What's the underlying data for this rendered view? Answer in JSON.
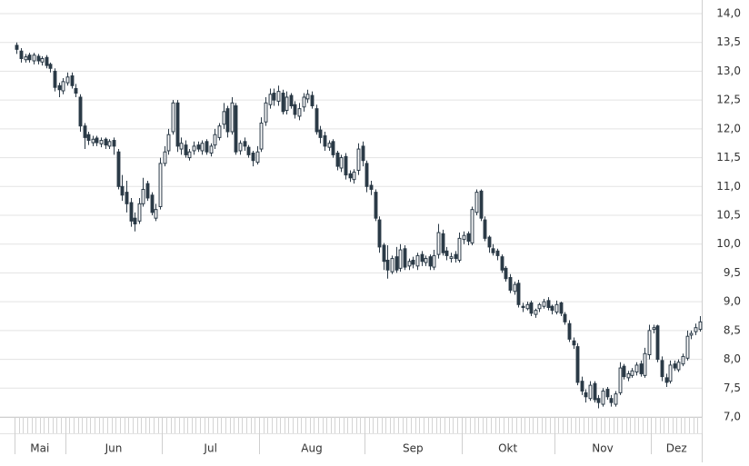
{
  "chart_data": {
    "type": "candlestick",
    "up_color": "#ffffff",
    "down_color": "#2b3a47",
    "line_color": "#2b3a47",
    "grid": true,
    "ylim": [
      7,
      14
    ],
    "yticks": [
      {
        "value": 7,
        "label": "7,0"
      },
      {
        "value": 7.5,
        "label": "7,5"
      },
      {
        "value": 8,
        "label": "8,0"
      },
      {
        "value": 8.5,
        "label": "8,5"
      },
      {
        "value": 9,
        "label": "9,0"
      },
      {
        "value": 9.5,
        "label": "9,5"
      },
      {
        "value": 10,
        "label": "10,0"
      },
      {
        "value": 10.5,
        "label": "10,5"
      },
      {
        "value": 11,
        "label": "11,0"
      },
      {
        "value": 11.5,
        "label": "11,5"
      },
      {
        "value": 12,
        "label": "12,0"
      },
      {
        "value": 12.5,
        "label": "12,5"
      },
      {
        "value": 13,
        "label": "13,0"
      },
      {
        "value": 13.5,
        "label": "13,5"
      },
      {
        "value": 14,
        "label": "14,0"
      }
    ],
    "xlim": [
      0,
      163
    ],
    "xticks": [
      {
        "value": 0,
        "label": "Mai"
      },
      {
        "value": 12,
        "label": "Jun"
      },
      {
        "value": 35,
        "label": "Jul"
      },
      {
        "value": 58,
        "label": "Aug"
      },
      {
        "value": 83,
        "label": "Sep"
      },
      {
        "value": 106,
        "label": "Okt"
      },
      {
        "value": 128,
        "label": "Nov"
      },
      {
        "value": 151,
        "label": "Dez"
      }
    ],
    "open": [
      13.45,
      13.35,
      13.2,
      13.28,
      13.18,
      13.26,
      13.16,
      13.24,
      13.12,
      13.0,
      12.75,
      12.66,
      12.8,
      12.92,
      12.7,
      12.55,
      12.05,
      11.9,
      11.76,
      11.84,
      11.74,
      11.82,
      11.7,
      11.8,
      11.6,
      11.0,
      10.9,
      10.72,
      10.45,
      10.4,
      10.7,
      11.05,
      10.85,
      10.45,
      10.65,
      11.4,
      11.62,
      11.95,
      12.45,
      11.65,
      11.72,
      11.5,
      11.62,
      11.72,
      11.62,
      11.78,
      11.58,
      11.72,
      11.85,
      12.08,
      12.35,
      11.95,
      12.4,
      11.62,
      11.78,
      11.68,
      11.58,
      11.42,
      11.65,
      12.12,
      12.42,
      12.62,
      12.48,
      12.62,
      12.32,
      12.58,
      12.42,
      12.22,
      12.38,
      12.52,
      12.58,
      12.35,
      11.98,
      11.88,
      11.68,
      11.78,
      11.58,
      11.32,
      11.52,
      11.22,
      11.12,
      11.28,
      11.7,
      11.4,
      11.02,
      10.9,
      10.42,
      9.98,
      9.72,
      9.52,
      9.78,
      9.58,
      9.92,
      9.62,
      9.72,
      9.62,
      9.82,
      9.68,
      9.78,
      9.6,
      9.82,
      10.18,
      9.88,
      9.75,
      9.82,
      9.72,
      10.08,
      10.18,
      10.02,
      10.55,
      10.92,
      10.42,
      10.12,
      9.92,
      9.88,
      9.78,
      9.58,
      9.42,
      9.18,
      9.32,
      8.92,
      8.88,
      8.98,
      8.78,
      8.88,
      8.92,
      9.02,
      8.92,
      8.82,
      8.98,
      8.78,
      8.62,
      8.32,
      8.22,
      7.62,
      7.42,
      7.32,
      7.58,
      7.32,
      7.22,
      7.48,
      7.32,
      7.22,
      7.42,
      7.88,
      7.68,
      7.72,
      7.78,
      7.92,
      7.72,
      8.08,
      8.52,
      8.58,
      7.98,
      7.68,
      7.62,
      7.92,
      7.82,
      7.92,
      8.02,
      8.42,
      8.48,
      8.52
    ],
    "high": [
      13.5,
      13.4,
      13.3,
      13.32,
      13.32,
      13.3,
      13.26,
      13.28,
      13.15,
      13.05,
      12.8,
      12.88,
      12.98,
      12.98,
      12.78,
      12.6,
      12.1,
      11.95,
      11.88,
      11.88,
      11.85,
      11.85,
      11.82,
      11.85,
      11.65,
      11.2,
      11.1,
      10.8,
      10.55,
      10.8,
      11.15,
      11.1,
      10.9,
      10.7,
      11.5,
      11.7,
      12.0,
      12.5,
      12.5,
      11.85,
      11.8,
      11.65,
      11.78,
      11.78,
      11.8,
      11.82,
      11.75,
      12.0,
      12.1,
      12.45,
      12.4,
      12.55,
      12.45,
      11.8,
      11.85,
      11.72,
      11.62,
      11.7,
      12.2,
      12.55,
      12.7,
      12.7,
      12.75,
      12.68,
      12.65,
      12.62,
      12.48,
      12.45,
      12.62,
      12.68,
      12.65,
      12.42,
      12.05,
      11.95,
      11.8,
      11.82,
      11.62,
      11.55,
      11.58,
      11.28,
      11.3,
      11.75,
      11.78,
      11.45,
      11.1,
      10.95,
      10.48,
      10.02,
      9.98,
      9.8,
      9.95,
      10.0,
      9.98,
      9.75,
      9.78,
      9.85,
      9.88,
      9.8,
      9.82,
      9.9,
      10.35,
      10.25,
      9.95,
      9.85,
      9.88,
      10.2,
      10.22,
      10.22,
      10.65,
      10.95,
      10.95,
      10.48,
      10.15,
      10.0,
      9.92,
      9.82,
      9.62,
      9.48,
      9.35,
      9.38,
      8.98,
      9.0,
      9.02,
      8.88,
      8.98,
      9.05,
      9.08,
      8.95,
      9.02,
      9.0,
      8.82,
      8.68,
      8.38,
      8.28,
      7.7,
      7.48,
      7.62,
      7.62,
      7.38,
      7.5,
      7.52,
      7.38,
      7.45,
      7.95,
      7.92,
      7.8,
      7.85,
      7.95,
      7.98,
      8.2,
      8.6,
      8.6,
      8.6,
      8.05,
      7.75,
      7.98,
      7.98,
      8.0,
      8.1,
      8.5,
      8.5,
      8.62,
      8.75
    ],
    "low": [
      13.3,
      13.15,
      13.15,
      13.15,
      13.12,
      13.12,
      13.1,
      13.05,
      12.98,
      12.65,
      12.55,
      12.6,
      12.75,
      12.7,
      12.55,
      11.95,
      11.65,
      11.72,
      11.7,
      11.7,
      11.68,
      11.65,
      11.65,
      11.55,
      10.95,
      10.75,
      10.55,
      10.3,
      10.22,
      10.35,
      10.65,
      10.75,
      10.5,
      10.4,
      10.6,
      11.35,
      11.55,
      11.9,
      11.6,
      11.55,
      11.5,
      11.45,
      11.55,
      11.6,
      11.55,
      11.55,
      11.52,
      11.65,
      11.8,
      12.0,
      11.85,
      11.9,
      11.55,
      11.55,
      11.62,
      11.5,
      11.35,
      11.38,
      11.6,
      12.05,
      12.35,
      12.4,
      12.4,
      12.25,
      12.25,
      12.35,
      12.18,
      12.15,
      12.3,
      12.45,
      12.35,
      11.9,
      11.75,
      11.62,
      11.62,
      11.5,
      11.28,
      11.25,
      11.12,
      11.08,
      11.05,
      11.2,
      11.35,
      10.9,
      10.85,
      10.4,
      9.85,
      9.55,
      9.4,
      9.48,
      9.5,
      9.52,
      9.55,
      9.55,
      9.58,
      9.55,
      9.62,
      9.62,
      9.55,
      9.55,
      9.75,
      9.8,
      9.72,
      9.68,
      9.68,
      9.68,
      10.0,
      9.98,
      9.98,
      10.5,
      10.4,
      10.05,
      9.85,
      9.8,
      9.72,
      9.5,
      9.35,
      9.15,
      9.12,
      8.9,
      8.82,
      8.85,
      8.75,
      8.72,
      8.82,
      8.88,
      8.85,
      8.78,
      8.78,
      8.75,
      8.6,
      8.3,
      8.18,
      7.55,
      7.38,
      7.25,
      7.28,
      7.25,
      7.15,
      7.18,
      7.3,
      7.18,
      7.18,
      7.38,
      7.65,
      7.62,
      7.68,
      7.72,
      7.7,
      7.68,
      8.0,
      8.45,
      7.95,
      7.62,
      7.52,
      7.58,
      7.8,
      7.78,
      7.88,
      7.98,
      8.35,
      8.42,
      8.48
    ],
    "close": [
      13.38,
      13.22,
      13.25,
      13.2,
      13.28,
      13.18,
      13.22,
      13.1,
      13.05,
      12.72,
      12.68,
      12.82,
      12.9,
      12.75,
      12.62,
      12.05,
      11.85,
      11.8,
      11.82,
      11.76,
      11.8,
      11.72,
      11.78,
      11.7,
      11.0,
      10.85,
      10.7,
      10.4,
      10.35,
      10.7,
      10.95,
      10.8,
      10.55,
      10.6,
      11.4,
      11.6,
      11.9,
      12.45,
      11.7,
      11.75,
      11.55,
      11.6,
      11.7,
      11.65,
      11.75,
      11.6,
      11.7,
      11.9,
      12.05,
      12.3,
      11.95,
      12.45,
      11.6,
      11.75,
      11.7,
      11.55,
      11.45,
      11.6,
      12.1,
      12.45,
      12.6,
      12.5,
      12.65,
      12.3,
      12.55,
      12.4,
      12.25,
      12.35,
      12.55,
      12.6,
      12.4,
      11.95,
      11.85,
      11.7,
      11.75,
      11.55,
      11.35,
      11.5,
      11.2,
      11.15,
      11.25,
      11.65,
      11.45,
      11.0,
      10.95,
      10.45,
      9.95,
      9.7,
      9.55,
      9.75,
      9.55,
      9.9,
      9.6,
      9.7,
      9.65,
      9.8,
      9.7,
      9.75,
      9.62,
      9.8,
      10.2,
      9.85,
      9.8,
      9.78,
      9.75,
      10.1,
      10.15,
      10.05,
      10.6,
      10.9,
      10.45,
      10.1,
      9.95,
      9.85,
      9.8,
      9.55,
      9.4,
      9.2,
      9.3,
      8.95,
      8.9,
      8.95,
      8.8,
      8.85,
      8.95,
      9.0,
      8.9,
      8.85,
      8.95,
      8.8,
      8.65,
      8.35,
      8.25,
      7.6,
      7.45,
      7.35,
      7.55,
      7.3,
      7.25,
      7.45,
      7.35,
      7.25,
      7.4,
      7.85,
      7.7,
      7.75,
      7.8,
      7.9,
      7.75,
      8.1,
      8.5,
      8.55,
      8.0,
      7.7,
      7.6,
      7.9,
      7.85,
      7.95,
      8.05,
      8.4,
      8.45,
      8.55,
      8.65
    ]
  }
}
